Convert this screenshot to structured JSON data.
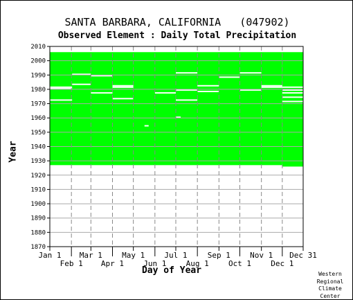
{
  "chart_data": {
    "type": "heatmap",
    "title": "SANTA BARBARA, CALIFORNIA   (047902)",
    "subtitle": "Observed Element : Daily Total Precipitation",
    "xlabel": "Day of Year",
    "ylabel": "Year",
    "ylim": [
      1870,
      2010
    ],
    "y_ticks": [
      1870,
      1880,
      1890,
      1900,
      1910,
      1920,
      1930,
      1940,
      1950,
      1960,
      1970,
      1980,
      1990,
      2000,
      2010
    ],
    "x_ticks_top_row": [
      {
        "label": "Jan 1",
        "day": 1
      },
      {
        "label": "Mar 1",
        "day": 60
      },
      {
        "label": "May 1",
        "day": 121
      },
      {
        "label": "Jul 1",
        "day": 182
      },
      {
        "label": "Sep 1",
        "day": 244
      },
      {
        "label": "Nov 1",
        "day": 305
      },
      {
        "label": "Dec 31",
        "day": 365
      }
    ],
    "x_ticks_bottom_row": [
      {
        "label": "Feb 1",
        "day": 32
      },
      {
        "label": "Apr 1",
        "day": 91
      },
      {
        "label": "Jun 1",
        "day": 152
      },
      {
        "label": "Aug 1",
        "day": 213
      },
      {
        "label": "Oct 1",
        "day": 274
      },
      {
        "label": "Dec 1",
        "day": 335
      }
    ],
    "data_color": "#00ff00",
    "grid": true,
    "coverage": [
      {
        "start_day": 1,
        "end_day": 334,
        "start_year": 1927,
        "end_year": 2005
      },
      {
        "start_day": 335,
        "end_day": 365,
        "start_year": 1926,
        "end_year": 2005
      }
    ],
    "missing_segments": [
      {
        "start_day": 1,
        "end_day": 32,
        "year": 1980
      },
      {
        "start_day": 1,
        "end_day": 32,
        "year": 1981
      },
      {
        "start_day": 1,
        "end_day": 32,
        "year": 1972
      },
      {
        "start_day": 33,
        "end_day": 59,
        "year": 1990
      },
      {
        "start_day": 33,
        "end_day": 59,
        "year": 1983
      },
      {
        "start_day": 60,
        "end_day": 90,
        "year": 1989
      },
      {
        "start_day": 60,
        "end_day": 90,
        "year": 1977
      },
      {
        "start_day": 91,
        "end_day": 120,
        "year": 1982
      },
      {
        "start_day": 91,
        "end_day": 120,
        "year": 1981
      },
      {
        "start_day": 91,
        "end_day": 120,
        "year": 1973
      },
      {
        "start_day": 137,
        "end_day": 142,
        "year": 1954
      },
      {
        "start_day": 152,
        "end_day": 181,
        "year": 1977
      },
      {
        "start_day": 182,
        "end_day": 212,
        "year": 1991
      },
      {
        "start_day": 182,
        "end_day": 212,
        "year": 1979
      },
      {
        "start_day": 182,
        "end_day": 212,
        "year": 1972
      },
      {
        "start_day": 182,
        "end_day": 188,
        "year": 1960
      },
      {
        "start_day": 213,
        "end_day": 243,
        "year": 1982
      },
      {
        "start_day": 213,
        "end_day": 243,
        "year": 1978
      },
      {
        "start_day": 244,
        "end_day": 273,
        "year": 1988
      },
      {
        "start_day": 274,
        "end_day": 304,
        "year": 1991
      },
      {
        "start_day": 274,
        "end_day": 304,
        "year": 1979
      },
      {
        "start_day": 305,
        "end_day": 334,
        "year": 1982
      },
      {
        "start_day": 305,
        "end_day": 334,
        "year": 1981
      },
      {
        "start_day": 335,
        "end_day": 365,
        "year": 1981
      },
      {
        "start_day": 335,
        "end_day": 365,
        "year": 1979
      },
      {
        "start_day": 335,
        "end_day": 365,
        "year": 1977
      },
      {
        "start_day": 335,
        "end_day": 365,
        "year": 1974
      },
      {
        "start_day": 335,
        "end_day": 365,
        "year": 1971
      }
    ]
  },
  "credit": {
    "line1": "Western",
    "line2": "Regional",
    "line3": "Climate",
    "line4": "Center"
  }
}
